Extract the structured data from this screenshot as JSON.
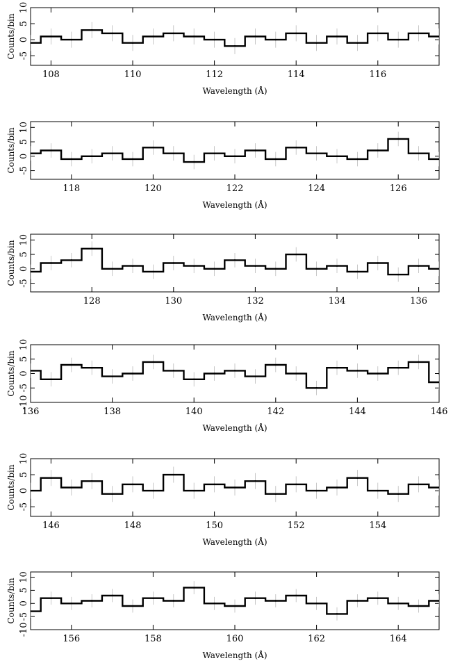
{
  "chart_data": [
    {
      "type": "line",
      "xlabel": "Wavelength (Å)",
      "ylabel": "Counts/bin",
      "xlim": [
        107.5,
        117.5
      ],
      "ylim": [
        -8,
        10
      ],
      "xticks": [
        108,
        110,
        112,
        114,
        116
      ],
      "yticks": [
        -5,
        0,
        5,
        10
      ],
      "series": [
        {
          "x": [
            107.5,
            108.0,
            108.5,
            109.0,
            109.5,
            110.0,
            110.5,
            111.0,
            111.5,
            112.0,
            112.5,
            113.0,
            113.5,
            114.0,
            114.5,
            115.0,
            115.5,
            116.0,
            116.5,
            117.0,
            117.5
          ],
          "y": [
            -1,
            1,
            0,
            3,
            2,
            -1,
            1,
            2,
            1,
            0,
            -2,
            1,
            0,
            2,
            -1,
            1,
            -1,
            2,
            0,
            2,
            1
          ]
        }
      ]
    },
    {
      "type": "line",
      "xlabel": "Wavelength (Å)",
      "ylabel": "Counts/bin",
      "xlim": [
        117,
        127
      ],
      "ylim": [
        -8,
        12
      ],
      "xticks": [
        118,
        120,
        122,
        124,
        126
      ],
      "yticks": [
        -5,
        0,
        5,
        10
      ],
      "series": [
        {
          "x": [
            117.0,
            117.5,
            118.0,
            118.5,
            119.0,
            119.5,
            120.0,
            120.5,
            121.0,
            121.5,
            122.0,
            122.5,
            123.0,
            123.5,
            124.0,
            124.5,
            125.0,
            125.5,
            126.0,
            126.5,
            127.0
          ],
          "y": [
            1,
            2,
            -1,
            0,
            1,
            -1,
            3,
            1,
            -2,
            1,
            0,
            2,
            -1,
            3,
            1,
            0,
            -1,
            2,
            6,
            1,
            -1
          ]
        }
      ]
    },
    {
      "type": "line",
      "xlabel": "Wavelength (Å)",
      "ylabel": "Counts/bin",
      "xlim": [
        126.5,
        136.5
      ],
      "ylim": [
        -8,
        12
      ],
      "xticks": [
        128,
        130,
        132,
        134,
        136
      ],
      "yticks": [
        -5,
        0,
        5,
        10
      ],
      "series": [
        {
          "x": [
            126.5,
            127.0,
            127.5,
            128.0,
            128.5,
            129.0,
            129.5,
            130.0,
            130.5,
            131.0,
            131.5,
            132.0,
            132.5,
            133.0,
            133.5,
            134.0,
            134.5,
            135.0,
            135.5,
            136.0,
            136.5
          ],
          "y": [
            -1,
            2,
            3,
            7,
            0,
            1,
            -1,
            2,
            1,
            0,
            3,
            1,
            0,
            5,
            0,
            1,
            -1,
            2,
            -2,
            1,
            0
          ]
        }
      ]
    },
    {
      "type": "line",
      "xlabel": "Wavelength (Å)",
      "ylabel": "Counts/bin",
      "xlim": [
        136,
        146
      ],
      "ylim": [
        -10,
        10
      ],
      "xticks": [
        136,
        138,
        140,
        142,
        144,
        146
      ],
      "yticks": [
        -10,
        -5,
        0,
        5,
        10
      ],
      "series": [
        {
          "x": [
            136.0,
            136.5,
            137.0,
            137.5,
            138.0,
            138.5,
            139.0,
            139.5,
            140.0,
            140.5,
            141.0,
            141.5,
            142.0,
            142.5,
            143.0,
            143.5,
            144.0,
            144.5,
            145.0,
            145.5,
            146.0
          ],
          "y": [
            1,
            -2,
            3,
            2,
            -1,
            0,
            4,
            1,
            -2,
            0,
            1,
            -1,
            3,
            0,
            -5,
            2,
            1,
            0,
            2,
            4,
            -3
          ]
        }
      ]
    },
    {
      "type": "line",
      "xlabel": "Wavelength (Å)",
      "ylabel": "Counts/bin",
      "xlim": [
        145.5,
        155.5
      ],
      "ylim": [
        -8,
        10
      ],
      "xticks": [
        146,
        148,
        150,
        152,
        154
      ],
      "yticks": [
        -5,
        0,
        5,
        10
      ],
      "series": [
        {
          "x": [
            145.5,
            146.0,
            146.5,
            147.0,
            147.5,
            148.0,
            148.5,
            149.0,
            149.5,
            150.0,
            150.5,
            151.0,
            151.5,
            152.0,
            152.5,
            153.0,
            153.5,
            154.0,
            154.5,
            155.0,
            155.5
          ],
          "y": [
            0,
            4,
            1,
            3,
            -1,
            2,
            0,
            5,
            0,
            2,
            1,
            3,
            -1,
            2,
            0,
            1,
            4,
            0,
            -1,
            2,
            1
          ]
        }
      ]
    },
    {
      "type": "line",
      "xlabel": "Wavelength (Å)",
      "ylabel": "Counts/bin",
      "xlim": [
        155,
        165
      ],
      "ylim": [
        -10,
        12
      ],
      "xticks": [
        156,
        158,
        160,
        162,
        164
      ],
      "yticks": [
        -10,
        -5,
        0,
        5,
        10
      ],
      "series": [
        {
          "x": [
            155.0,
            155.5,
            156.0,
            156.5,
            157.0,
            157.5,
            158.0,
            158.5,
            159.0,
            159.5,
            160.0,
            160.5,
            161.0,
            161.5,
            162.0,
            162.5,
            163.0,
            163.5,
            164.0,
            164.5,
            165.0
          ],
          "y": [
            -3,
            2,
            0,
            1,
            3,
            -1,
            2,
            1,
            6,
            0,
            -1,
            2,
            1,
            3,
            0,
            -4,
            1,
            2,
            0,
            -1,
            1
          ]
        }
      ]
    }
  ]
}
